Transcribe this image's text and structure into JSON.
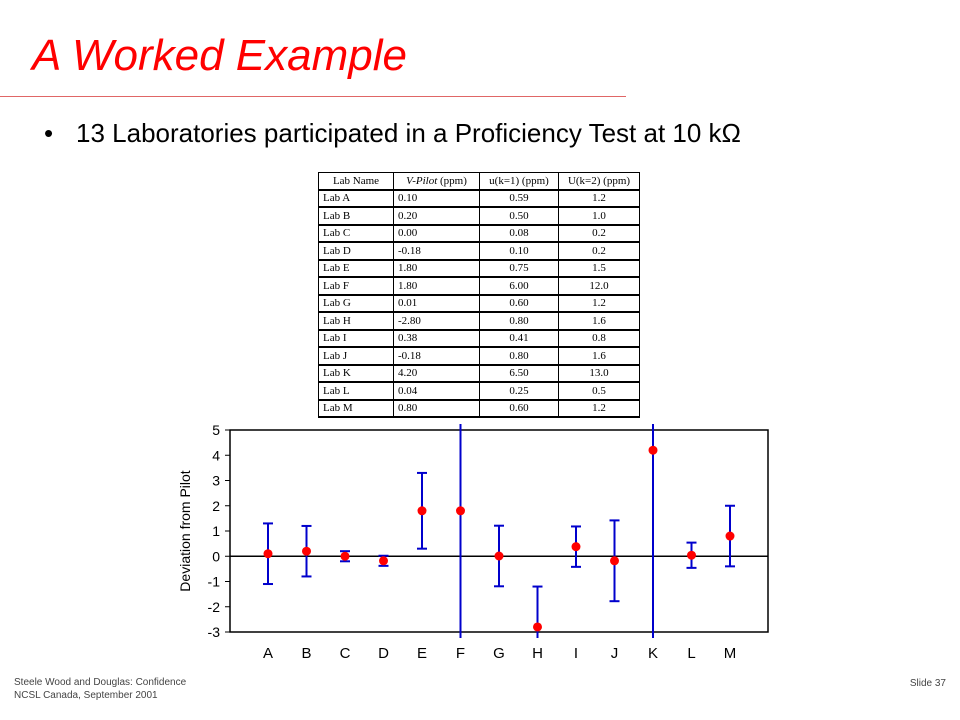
{
  "slide": {
    "title": "A Worked Example",
    "bullet": "13 Laboratories participated in a Proficiency Test at  10 kΩ",
    "footer_line1": "Steele Wood and Douglas: Confidence",
    "footer_line2": "NCSL Canada, September 2001",
    "slide_number": "Slide 37"
  },
  "table": {
    "headers": [
      "Lab Name",
      "V-Pilot (ppm)",
      "u(k=1) (ppm)",
      "U(k=2) (ppm)"
    ],
    "rows": [
      [
        "Lab A",
        "0.10",
        "0.59",
        "1.2"
      ],
      [
        "Lab B",
        "0.20",
        "0.50",
        "1.0"
      ],
      [
        "Lab C",
        "0.00",
        "0.08",
        "0.2"
      ],
      [
        "Lab D",
        "-0.18",
        "0.10",
        "0.2"
      ],
      [
        "Lab E",
        "1.80",
        "0.75",
        "1.5"
      ],
      [
        "Lab F",
        "1.80",
        "6.00",
        "12.0"
      ],
      [
        "Lab G",
        "0.01",
        "0.60",
        "1.2"
      ],
      [
        "Lab H",
        "-2.80",
        "0.80",
        "1.6"
      ],
      [
        "Lab I",
        "0.38",
        "0.41",
        "0.8"
      ],
      [
        "Lab J",
        "-0.18",
        "0.80",
        "1.6"
      ],
      [
        "Lab K",
        "4.20",
        "6.50",
        "13.0"
      ],
      [
        "Lab L",
        "0.04",
        "0.25",
        "0.5"
      ],
      [
        "Lab M",
        "0.80",
        "0.60",
        "1.2"
      ]
    ]
  },
  "chart_data": {
    "type": "scatter",
    "categories": [
      "A",
      "B",
      "C",
      "D",
      "E",
      "F",
      "G",
      "H",
      "I",
      "J",
      "K",
      "L",
      "M"
    ],
    "values": [
      0.1,
      0.2,
      0.0,
      -0.18,
      1.8,
      1.8,
      0.01,
      -2.8,
      0.38,
      -0.18,
      4.2,
      0.04,
      0.8
    ],
    "error_U": [
      1.2,
      1.0,
      0.2,
      0.2,
      1.5,
      12.0,
      1.2,
      1.6,
      0.8,
      1.6,
      13.0,
      0.5,
      1.2
    ],
    "ylabel": "Deviation from Pilot",
    "xlabel": "",
    "ylim": [
      -3,
      5
    ],
    "yticks": [
      "5",
      "4",
      "3",
      "2",
      "1",
      "0",
      "-1",
      "-2",
      "-3"
    ],
    "ytick_values": [
      5,
      4,
      3,
      2,
      1,
      0,
      -1,
      -2,
      -3
    ],
    "zero_line": true,
    "grid": false,
    "marker_color": "#ff0000",
    "errorbar_color": "#0000cc"
  }
}
